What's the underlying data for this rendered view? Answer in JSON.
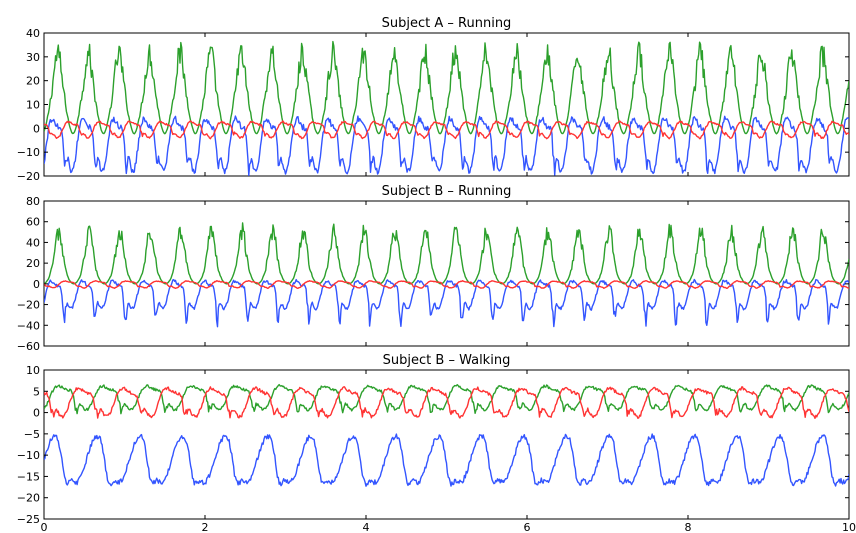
{
  "chart_data": [
    {
      "type": "line",
      "title": "Subject A – Running",
      "xlim": [
        0,
        10
      ],
      "ylim": [
        -20,
        40
      ],
      "yticks": [
        -20,
        -10,
        0,
        10,
        20,
        30,
        40
      ],
      "yticklabels": [
        "−20",
        "−10",
        "0",
        "10",
        "20",
        "30",
        "40"
      ],
      "grid": false,
      "series": [
        {
          "color": "#2ca02c",
          "kind": "peaks",
          "period": 0.38,
          "phase": 0.17,
          "baseline": 0,
          "peak": 32,
          "spread": 0.06,
          "floor": -5
        },
        {
          "color": "#3355ff",
          "kind": "wave",
          "period": 0.38,
          "phase": 0.05,
          "center": -5,
          "amp": 10,
          "dip": -18
        },
        {
          "color": "#ff3333",
          "kind": "wave",
          "period": 0.38,
          "phase": 0.25,
          "center": 0,
          "amp": 3,
          "dip": -3
        }
      ]
    },
    {
      "type": "line",
      "title": "Subject B – Running",
      "xlim": [
        0,
        10
      ],
      "ylim": [
        -60,
        80
      ],
      "yticks": [
        -60,
        -40,
        -20,
        0,
        20,
        40,
        60,
        80
      ],
      "yticklabels": [
        "−60",
        "−40",
        "−20",
        "0",
        "20",
        "40",
        "60",
        "80"
      ],
      "grid": false,
      "series": [
        {
          "color": "#2ca02c",
          "kind": "peaks",
          "period": 0.38,
          "phase": 0.18,
          "baseline": 2,
          "peak": 50,
          "spread": 0.05,
          "floor": -2
        },
        {
          "color": "#3355ff",
          "kind": "wave",
          "period": 0.38,
          "phase": 0.04,
          "center": -8,
          "amp": 12,
          "dip": -40
        },
        {
          "color": "#ff3333",
          "kind": "wave",
          "period": 0.38,
          "phase": 0.2,
          "center": 0,
          "amp": 3,
          "dip": -3
        }
      ]
    },
    {
      "type": "line",
      "title": "Subject B – Walking",
      "xlim": [
        0,
        10
      ],
      "ylim": [
        -25,
        10
      ],
      "yticks": [
        -25,
        -20,
        -15,
        -10,
        -5,
        0,
        5,
        10
      ],
      "yticklabels": [
        "−25",
        "−20",
        "−15",
        "−10",
        "−5",
        "0",
        "5",
        "10"
      ],
      "xticks": [
        0,
        2,
        4,
        6,
        8,
        10
      ],
      "xticklabels": [
        "0",
        "2",
        "4",
        "6",
        "8",
        "10"
      ],
      "grid": false,
      "series": [
        {
          "color": "#2ca02c",
          "kind": "wave",
          "period": 0.55,
          "phase": 0.1,
          "center": 4,
          "amp": 2.5,
          "dip": 0
        },
        {
          "color": "#ff3333",
          "kind": "wave",
          "period": 0.55,
          "phase": 0.35,
          "center": 3,
          "amp": 3,
          "dip": -1
        },
        {
          "color": "#3355ff",
          "kind": "gait",
          "period": 0.53,
          "phase": 0.0,
          "center": -11,
          "amp": 6,
          "dip": -28
        }
      ]
    }
  ]
}
